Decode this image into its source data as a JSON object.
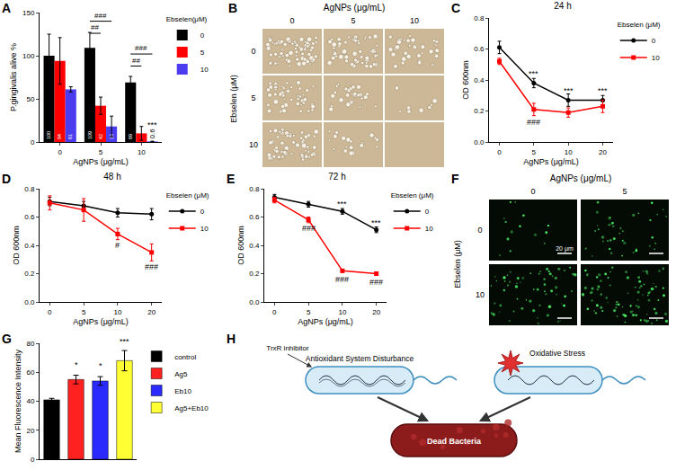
{
  "chart_data": [
    {
      "panel": "A",
      "type": "bar",
      "categories": [
        "0",
        "5",
        "10"
      ],
      "x_label": "AgNPs (μg/mL)",
      "y_label": "P.gingivalis alive %",
      "legend_title": "Ebselen(μM)",
      "legend": "right",
      "ylim": [
        0,
        150
      ],
      "yticks": [
        0,
        50,
        100,
        150
      ],
      "data_labels": true,
      "series": [
        {
          "name": "0",
          "color": "#000000",
          "values": [
            100,
            109,
            69
          ],
          "errors": [
            25,
            18,
            7
          ],
          "value_labels": [
            "100",
            "109",
            "69"
          ]
        },
        {
          "name": "5",
          "color": "#ff0000",
          "values": [
            94,
            42,
            10
          ],
          "errors": [
            27,
            10,
            8
          ],
          "value_labels": [
            "94",
            "42",
            null
          ]
        },
        {
          "name": "10",
          "color": "#4b3cf0",
          "values": [
            61,
            18,
            0.6
          ],
          "errors": [
            3,
            12,
            0.3
          ],
          "value_labels": [
            "61",
            "18",
            "0.6"
          ]
        }
      ],
      "comparisons": [
        {
          "category": "5",
          "from": "0",
          "to": "10",
          "y": 140,
          "text": "###"
        },
        {
          "category": "5",
          "from": "0",
          "to": "5",
          "y": 126,
          "text": "##"
        },
        {
          "category": "10",
          "from": "0",
          "to": "10",
          "y": 102,
          "text": "###"
        },
        {
          "category": "10",
          "from": "0",
          "to": "5",
          "y": 88,
          "text": "##"
        }
      ],
      "annotations": [
        {
          "category": "10",
          "series": "10",
          "y": 12,
          "text": "***"
        }
      ]
    },
    {
      "panel": "C",
      "type": "line",
      "title": "24 h",
      "categories": [
        "0",
        "5",
        "10",
        "20"
      ],
      "x_label": "AgNPs (μg/mL)",
      "y_label": "OD 600nm",
      "legend_title": "Ebselen (μM)",
      "legend": "right",
      "ylim": [
        0,
        0.8
      ],
      "yticks": [
        {
          "value": 0,
          "label": "0.0"
        },
        0.2,
        0.4,
        0.6,
        0.8
      ],
      "series": [
        {
          "name": "0",
          "color": "#000000",
          "marker": "circle",
          "values": [
            0.61,
            0.38,
            0.27,
            0.27
          ],
          "errors": [
            0.04,
            0.03,
            0.04,
            0.03
          ]
        },
        {
          "name": "10",
          "color": "#ff0000",
          "marker": "square",
          "values": [
            0.52,
            0.21,
            0.19,
            0.23
          ],
          "errors": [
            0.02,
            0.04,
            0.03,
            0.04
          ]
        }
      ],
      "annotations": [
        {
          "category": "5",
          "y": 0.44,
          "text": "***"
        },
        {
          "category": "10",
          "y": 0.33,
          "text": "***"
        },
        {
          "category": "20",
          "y": 0.33,
          "text": "***"
        },
        {
          "category": "5",
          "y": 0.13,
          "text": "###"
        }
      ]
    },
    {
      "panel": "D",
      "type": "line",
      "title": "48 h",
      "categories": [
        "0",
        "5",
        "10",
        "20"
      ],
      "x_label": "AgNPs (μg/mL)",
      "y_label": "OD 600nm",
      "legend_title": "Ebselen (μM)",
      "legend": "right",
      "ylim": [
        0,
        0.8
      ],
      "yticks": [
        {
          "value": 0,
          "label": "0.0"
        },
        0.2,
        0.4,
        0.6,
        0.8
      ],
      "series": [
        {
          "name": "0",
          "color": "#000000",
          "marker": "circle",
          "values": [
            0.71,
            0.68,
            0.63,
            0.62
          ],
          "errors": [
            0.03,
            0.03,
            0.03,
            0.04
          ]
        },
        {
          "name": "10",
          "color": "#ff0000",
          "marker": "square",
          "values": [
            0.7,
            0.65,
            0.48,
            0.35
          ],
          "errors": [
            0.05,
            0.08,
            0.04,
            0.06
          ]
        }
      ],
      "annotations": [
        {
          "category": "10",
          "y": 0.4,
          "text": "#"
        },
        {
          "category": "20",
          "y": 0.25,
          "text": "###"
        }
      ]
    },
    {
      "panel": "E",
      "type": "line",
      "title": "72 h",
      "categories": [
        "0",
        "5",
        "10",
        "20"
      ],
      "x_label": "AgNPs (μg/mL)",
      "y_label": "OD 600nm",
      "legend_title": "Ebselen (μM)",
      "legend": "right",
      "ylim": [
        0,
        0.8
      ],
      "yticks": [
        {
          "value": 0,
          "label": "0.0"
        },
        0.2,
        0.4,
        0.6,
        0.8
      ],
      "series": [
        {
          "name": "0",
          "color": "#000000",
          "marker": "circle",
          "values": [
            0.74,
            0.69,
            0.64,
            0.51
          ],
          "errors": [
            0.02,
            0.02,
            0.02,
            0.02
          ]
        },
        {
          "name": "10",
          "color": "#ff0000",
          "marker": "square",
          "values": [
            0.72,
            0.58,
            0.22,
            0.2
          ],
          "errors": [
            0.02,
            0.02,
            0.01,
            0.01
          ]
        }
      ],
      "annotations": [
        {
          "category": "10",
          "y": 0.69,
          "text": "***"
        },
        {
          "category": "20",
          "y": 0.56,
          "text": "***"
        },
        {
          "category": "5",
          "y": 0.52,
          "text": "###"
        },
        {
          "category": "10",
          "y": 0.16,
          "text": "###"
        },
        {
          "category": "20",
          "y": 0.14,
          "text": "###"
        }
      ]
    },
    {
      "panel": "G",
      "type": "bar",
      "categories": [
        "control",
        "Ag5",
        "Eb10",
        "Ag5+Eb10"
      ],
      "y_label": "Mean Fluorescence Intensity",
      "legend": "right",
      "tick_labels": "y",
      "ylim": [
        0,
        80
      ],
      "yticks": [
        0,
        20,
        40,
        60,
        80
      ],
      "values": [
        41,
        55,
        54,
        68
      ],
      "errors": [
        1,
        3,
        3,
        7
      ],
      "colors": [
        "#000000",
        "#ff2020",
        "#2a2aff",
        "#ffff33"
      ],
      "annotations": [
        {
          "category": "Ag5",
          "y": 61,
          "text": "*"
        },
        {
          "category": "Eb10",
          "y": 60,
          "text": "*"
        },
        {
          "category": "Ag5+Eb10",
          "y": 77,
          "text": "***"
        }
      ]
    }
  ],
  "images": [
    {
      "panel": "B",
      "title": "AgNPs (μg/mL)",
      "columns": [
        "0",
        "5",
        "10"
      ],
      "row_title": "Ebselen (μM)",
      "rows": [
        "0",
        "5",
        "10"
      ]
    },
    {
      "panel": "F",
      "title": "AgNPs (μg/mL)",
      "columns": [
        "0",
        "5"
      ],
      "row_title": "Ebselen (μM)",
      "rows": [
        "0",
        "10"
      ],
      "scale_bar": "20 μm"
    }
  ],
  "diagram": {
    "panel": "H",
    "labels": {
      "inhibitor": "TrxR inhibitor",
      "left": "Antioxidant System Disturbance",
      "right": "Oxidative Stress",
      "result": "Dead Bacteria"
    }
  }
}
